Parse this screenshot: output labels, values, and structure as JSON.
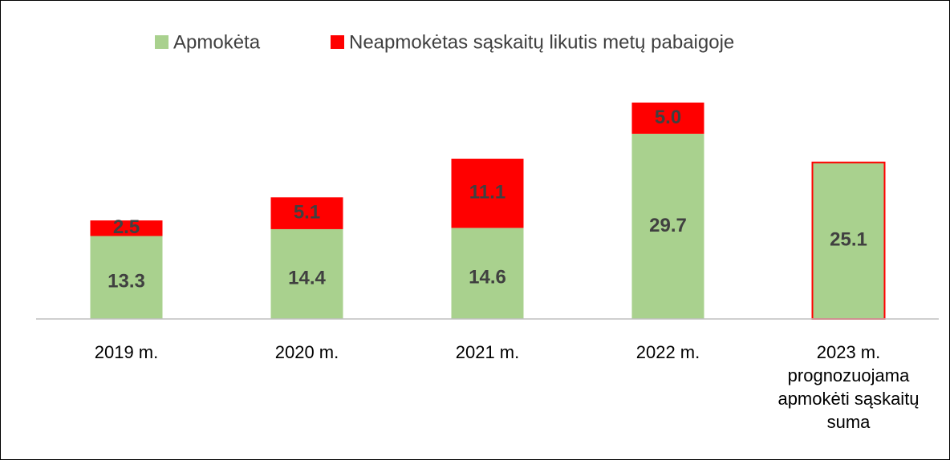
{
  "chart_data": {
    "type": "stacked_bar",
    "categories": [
      "2019 m.",
      "2020 m.",
      "2021 m.",
      "2022 m.",
      "2023 m. prognozuojama apmokėti sąskaitų suma"
    ],
    "series": [
      {
        "name": "Apmokėta",
        "color": "#a9d18e",
        "values": [
          13.3,
          14.4,
          14.6,
          29.7,
          25.1
        ]
      },
      {
        "name": "Neapmokėtas sąskaitų likutis metų pabaigoje",
        "color": "#ff0000",
        "values": [
          2.5,
          5.1,
          11.1,
          5.0,
          null
        ],
        "value_labels": [
          "2.5",
          "5.1",
          "11.1",
          "5.0",
          null
        ]
      }
    ],
    "legend": "top"
  }
}
